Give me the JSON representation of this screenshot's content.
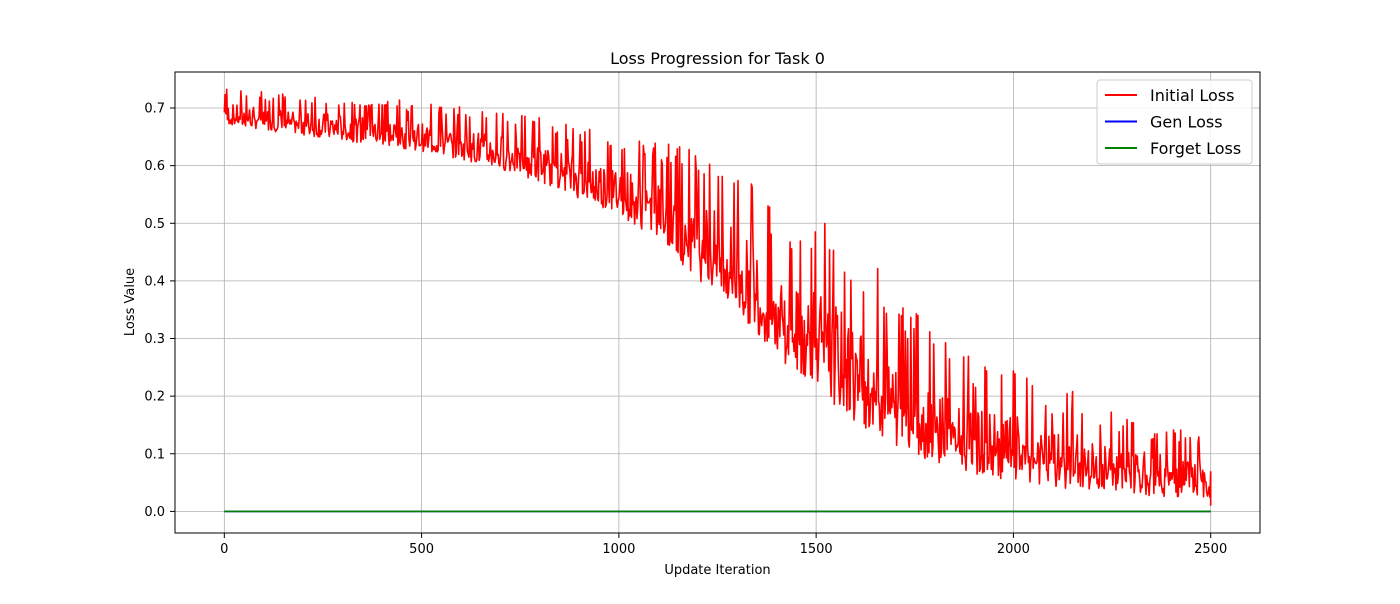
{
  "chart_data": {
    "type": "line",
    "title": "Loss Progression for Task 0",
    "xlabel": "Update Iteration",
    "ylabel": "Loss Value",
    "xlim": [
      -125,
      2625
    ],
    "ylim": [
      -0.0375,
      0.7625
    ],
    "xticks": [
      0,
      500,
      1000,
      1500,
      2000,
      2500
    ],
    "yticks": [
      0.0,
      0.1,
      0.2,
      0.3,
      0.4,
      0.5,
      0.6,
      0.7
    ],
    "xtick_labels": [
      "0",
      "500",
      "1000",
      "1500",
      "2000",
      "2500"
    ],
    "ytick_labels": [
      "0.0",
      "0.1",
      "0.2",
      "0.3",
      "0.4",
      "0.5",
      "0.6",
      "0.7"
    ],
    "grid": true,
    "legend_position": "top-right",
    "series": [
      {
        "name": "Initial Loss",
        "color": "#ff0000",
        "x": [
          0,
          50,
          100,
          150,
          200,
          250,
          300,
          350,
          400,
          450,
          500,
          550,
          600,
          650,
          700,
          750,
          800,
          850,
          900,
          950,
          1000,
          1050,
          1100,
          1150,
          1200,
          1250,
          1300,
          1350,
          1400,
          1450,
          1500,
          1550,
          1600,
          1650,
          1700,
          1750,
          1800,
          1850,
          1900,
          1950,
          2000,
          2050,
          2100,
          2150,
          2200,
          2250,
          2300,
          2350,
          2400,
          2450,
          2500
        ],
        "upper": [
          0.735,
          0.73,
          0.728,
          0.726,
          0.724,
          0.722,
          0.72,
          0.718,
          0.716,
          0.714,
          0.712,
          0.71,
          0.705,
          0.7,
          0.695,
          0.69,
          0.685,
          0.675,
          0.67,
          0.665,
          0.66,
          0.65,
          0.645,
          0.64,
          0.65,
          0.62,
          0.6,
          0.58,
          0.52,
          0.49,
          0.53,
          0.48,
          0.44,
          0.43,
          0.38,
          0.35,
          0.33,
          0.3,
          0.26,
          0.25,
          0.245,
          0.23,
          0.2,
          0.21,
          0.18,
          0.175,
          0.16,
          0.155,
          0.15,
          0.14,
          0.135
        ],
        "lower": [
          0.66,
          0.655,
          0.65,
          0.645,
          0.64,
          0.635,
          0.63,
          0.625,
          0.62,
          0.615,
          0.61,
          0.6,
          0.595,
          0.585,
          0.575,
          0.565,
          0.55,
          0.54,
          0.52,
          0.505,
          0.49,
          0.465,
          0.44,
          0.4,
          0.36,
          0.33,
          0.3,
          0.26,
          0.23,
          0.19,
          0.17,
          0.13,
          0.1,
          0.085,
          0.065,
          0.05,
          0.045,
          0.035,
          0.03,
          0.025,
          0.02,
          0.015,
          0.012,
          0.01,
          0.008,
          0.006,
          0.005,
          0.004,
          0.003,
          0.002,
          0.002
        ],
        "final": 0.01
      },
      {
        "name": "Gen Loss",
        "color": "#0000ff",
        "x": [
          0,
          2500
        ],
        "y": [
          0.0,
          0.0
        ]
      },
      {
        "name": "Forget Loss",
        "color": "#008000",
        "x": [
          0,
          2500
        ],
        "y": [
          0.0,
          0.0
        ]
      }
    ]
  }
}
